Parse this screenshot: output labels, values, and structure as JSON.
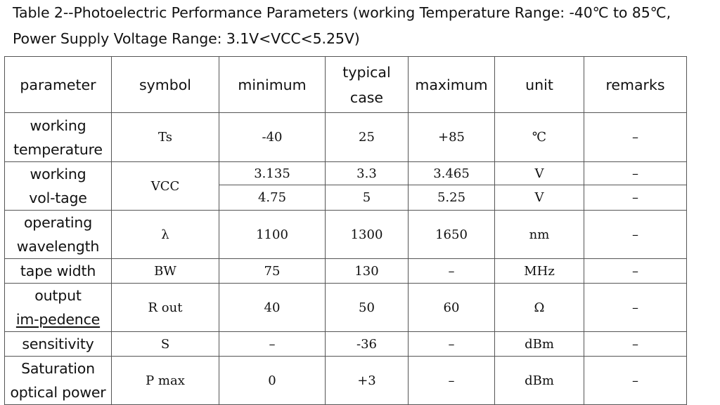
{
  "caption": {
    "line1": "Table 2--Photoelectric Performance Parameters (working Temperature Range: -40℃ to 85℃,",
    "line2": "Power Supply Voltage Range: 3.1V<VCC<5.25V)"
  },
  "headers": {
    "parameter": "parameter",
    "symbol": "symbol",
    "minimum": "minimum",
    "typical_1": "typical",
    "typical_2": "case",
    "maximum": "maximum",
    "unit": "unit",
    "remarks": "remarks"
  },
  "rows": {
    "temp": {
      "p1": "working",
      "p2": "temperature",
      "symbol": "Ts",
      "min": "-40",
      "typ": "25",
      "max": "+85",
      "unit": "℃",
      "remarks": "–"
    },
    "volt": {
      "p1": "working",
      "p2": "vol-tage",
      "symbol": "VCC",
      "a": {
        "min": "3.135",
        "typ": "3.3",
        "max": "3.465",
        "unit": "V",
        "remarks": "–"
      },
      "b": {
        "min": "4.75",
        "typ": "5",
        "max": "5.25",
        "unit": "V",
        "remarks": "–"
      }
    },
    "wave": {
      "p1": "operating",
      "p2": "wavelength",
      "symbol": "λ",
      "min": "1100",
      "typ": "1300",
      "max": "1650",
      "unit": "nm",
      "remarks": "–"
    },
    "bw": {
      "p1": "tape width",
      "symbol": "BW",
      "min": "75",
      "typ": "130",
      "max": "–",
      "unit": "MHz",
      "remarks": "–"
    },
    "imp": {
      "p1": "output",
      "p2": "im-pedence",
      "symbol": "R out",
      "min": "40",
      "typ": "50",
      "max": "60",
      "unit": "Ω",
      "remarks": "–"
    },
    "sens": {
      "p1": "sensitivity",
      "symbol": "S",
      "min": "–",
      "typ": "-36",
      "max": "–",
      "unit": "dBm",
      "remarks": "–"
    },
    "sat": {
      "p1": "Saturation",
      "p2": "optical power",
      "symbol": "P max",
      "min": "0",
      "typ": "+3",
      "max": "–",
      "unit": "dBm",
      "remarks": "–"
    }
  }
}
